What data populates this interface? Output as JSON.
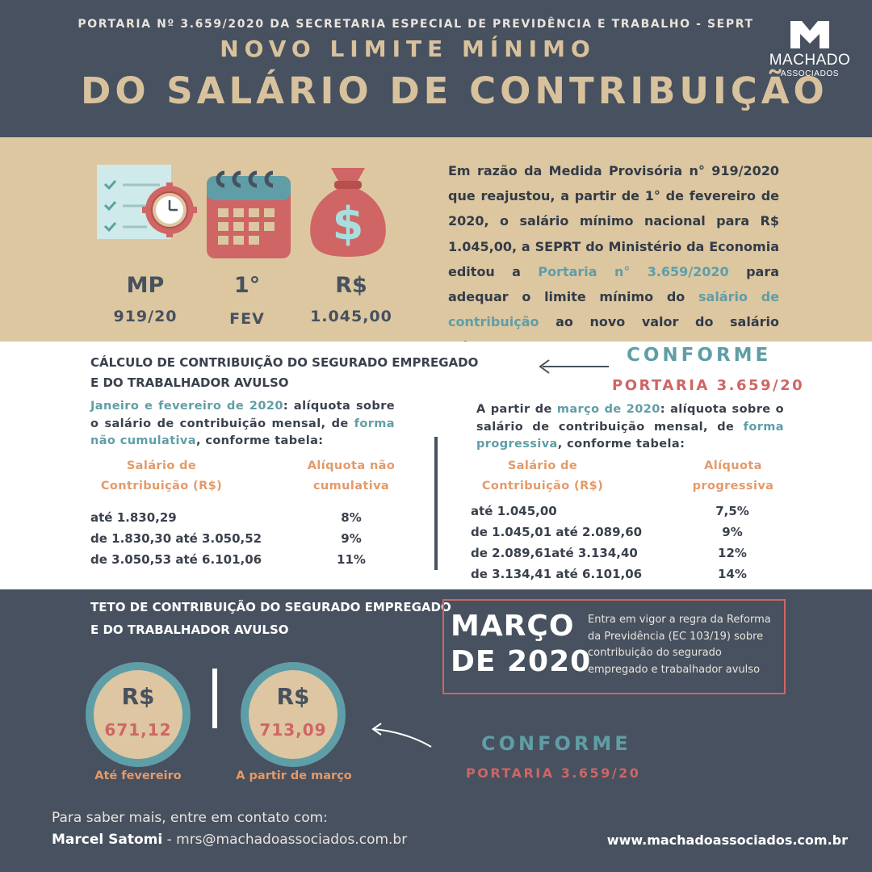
{
  "header": {
    "portaria_line": "PORTARIA Nº 3.659/2020 DA SECRETARIA ESPECIAL DE PREVIDÊNCIA E TRABALHO - SEPRT",
    "title_line1": "NOVO LIMITE MÍNIMO",
    "title_line2": "DO SALÁRIO DE CONTRIBUIÇÃO",
    "logo_name": "MACHADO",
    "logo_sub": "ASSOCIADOS"
  },
  "icons": [
    {
      "icon": "checklist-clock-icon",
      "big": "MP",
      "small": "919/20"
    },
    {
      "icon": "calendar-icon",
      "big": "1°",
      "small": "FEV"
    },
    {
      "icon": "money-bag-icon",
      "big": "R$",
      "small": "1.045,00"
    }
  ],
  "intro": {
    "part1": "Em razão da Medida Provisória n° 919/2020 que reajustou, a partir de 1° de fevereiro de 2020, o salário mínimo nacional para R$ 1.045,00, a SEPRT do Ministério da Economia editou a ",
    "link1": "Portaria n° 3.659/2020",
    "part2": " para adequar o limite mínimo do ",
    "link2": "salário de contribuição",
    "part3": " ao novo valor do salário mínimo."
  },
  "calc": {
    "title_line1": "CÁLCULO DE CONTRIBUIÇÃO DO SEGURADO EMPREGADO",
    "title_line2": "E DO TRABALHADOR AVULSO",
    "conforme": "CONFORME",
    "portaria": "PORTARIA 3.659/20",
    "left": {
      "hl1": "Janeiro e fevereiro de 2020",
      "text1": ": alíquota sobre o salário de contribuição mensal, de ",
      "hl2": "forma não cumulativa",
      "text2": ", conforme tabela:",
      "col1_line1": "Salário de",
      "col1_line2": "Contribuição (R$)",
      "col2_line1": "Alíquota não",
      "col2_line2": "cumulativa",
      "rows": [
        {
          "range": "até 1.830,29",
          "rate": "8%"
        },
        {
          "range": "de 1.830,30 até 3.050,52",
          "rate": "9%"
        },
        {
          "range": "de 3.050,53 até 6.101,06",
          "rate": "11%"
        }
      ]
    },
    "right": {
      "text0": "A partir de ",
      "hl1": "março de 2020",
      "text1": ": alíquota sobre o salário de contribuição mensal, de ",
      "hl2": "forma progressiva",
      "text2": ", conforme  tabela:",
      "col1_line1": "Salário de",
      "col1_line2": "Contribuição (R$)",
      "col2_line1": "Alíquota",
      "col2_line2": "progressiva",
      "rows": [
        {
          "range": "até 1.045,00",
          "rate": "7,5%"
        },
        {
          "range": "de 1.045,01 até 2.089,60",
          "rate": "9%"
        },
        {
          "range": "de 2.089,61até 3.134,40",
          "rate": "12%"
        },
        {
          "range": "de 3.134,41 até 6.101,06",
          "rate": "14%"
        }
      ]
    }
  },
  "teto": {
    "title_line1": "TETO DE CONTRIBUIÇÃO DO SEGURADO EMPREGADO",
    "title_line2": "E DO TRABALHADOR AVULSO",
    "circles": [
      {
        "currency": "R$",
        "value": "671,12",
        "caption": "Até fevereiro"
      },
      {
        "currency": "R$",
        "value": "713,09",
        "caption": "A partir de março"
      }
    ],
    "marco_line1": "MARÇO",
    "marco_line2": "DE 2020",
    "marco_text": "Entra em vigor a regra da Reforma da Previdência (EC 103/19) sobre contribuição do segurado empregado e trabalhador avulso",
    "conforme": "CONFORME",
    "portaria": "PORTARIA 3.659/20"
  },
  "footer": {
    "line1": "Para saber mais, entre em contato com:",
    "name": "Marcel Satomi",
    "email": " - mrs@machadoassociados.com.br",
    "url": "www.machadoassociados.com.br"
  },
  "colors": {
    "navy": "#47515f",
    "beige": "#dcc7a1",
    "teal": "#5f9ea6",
    "coral": "#d06565",
    "orange": "#e39a6a"
  }
}
